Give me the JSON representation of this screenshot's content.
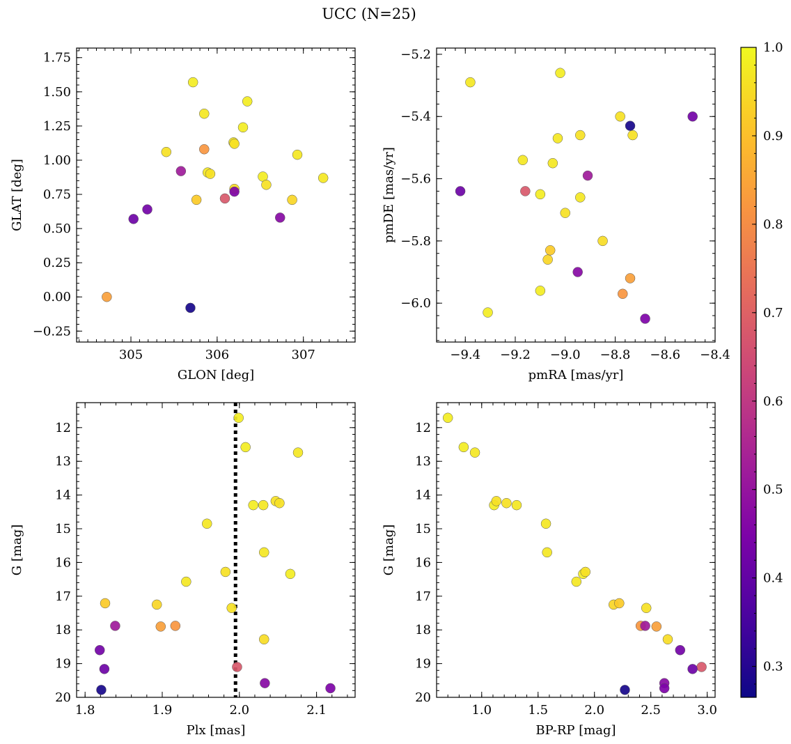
{
  "chart_data": {
    "type": "scatter",
    "title": "UCC (N=25)",
    "colorbar": {
      "range": [
        0.265,
        1.0
      ],
      "ticks": [
        0.3,
        0.4,
        0.5,
        0.6,
        0.7,
        0.8,
        0.9,
        1.0
      ],
      "tick_labels": [
        "0.3",
        "0.4",
        "0.5",
        "0.6",
        "0.7",
        "0.8",
        "0.9",
        "1.0"
      ],
      "colormap": "plasma"
    },
    "members": {
      "glon": [
        305.72,
        306.35,
        305.85,
        306.3,
        306.19,
        306.2,
        305.41,
        306.93,
        305.89,
        305.92,
        306.53,
        307.23,
        306.57,
        306.2,
        305.76,
        306.87,
        304.72,
        305.85,
        305.58,
        306.09,
        305.19,
        305.03,
        306.73,
        305.69,
        306.2
      ],
      "glat": [
        1.57,
        1.43,
        1.34,
        1.24,
        1.13,
        1.12,
        1.06,
        1.04,
        0.91,
        0.9,
        0.88,
        0.87,
        0.82,
        0.79,
        0.71,
        0.71,
        0.0,
        1.08,
        0.92,
        0.72,
        0.64,
        0.57,
        0.58,
        -0.08,
        0.77
      ],
      "pmra": [
        -9.31,
        -9.1,
        -9.38,
        -9.02,
        -9.03,
        -8.78,
        -8.94,
        -9.17,
        -9.05,
        -8.73,
        -9.1,
        -8.94,
        -9.0,
        -8.85,
        -9.06,
        -9.07,
        -8.74,
        -8.77,
        -8.91,
        -9.16,
        -8.49,
        -9.42,
        -8.95,
        -8.74,
        -8.68
      ],
      "pmde": [
        -6.03,
        -5.96,
        -5.29,
        -5.26,
        -5.47,
        -5.4,
        -5.46,
        -5.54,
        -5.55,
        -5.46,
        -5.65,
        -5.66,
        -5.71,
        -5.8,
        -5.83,
        -5.86,
        -5.92,
        -5.97,
        -5.59,
        -5.64,
        -5.4,
        -5.64,
        -5.9,
        -5.43,
        -6.05
      ],
      "plx": [
        1.999,
        2.008,
        2.076,
        2.018,
        2.031,
        2.047,
        2.052,
        1.958,
        2.032,
        1.982,
        2.066,
        1.931,
        1.99,
        2.032,
        1.826,
        1.893,
        1.898,
        1.917,
        1.839,
        1.997,
        1.819,
        1.825,
        2.033,
        1.821,
        2.118
      ],
      "G": [
        11.71,
        12.58,
        12.74,
        14.3,
        14.3,
        14.18,
        14.24,
        14.85,
        15.7,
        16.28,
        16.34,
        16.57,
        17.35,
        18.28,
        17.21,
        17.25,
        17.9,
        17.88,
        17.88,
        19.1,
        18.6,
        19.16,
        19.58,
        19.78,
        19.73
      ],
      "bprp": [
        0.7,
        0.84,
        0.94,
        1.11,
        1.31,
        1.13,
        1.22,
        1.57,
        1.58,
        1.92,
        1.9,
        1.84,
        2.46,
        2.65,
        2.22,
        2.17,
        2.55,
        2.41,
        2.45,
        2.95,
        2.76,
        2.87,
        2.62,
        2.27,
        2.62
      ],
      "prob": [
        0.98,
        0.98,
        0.97,
        0.98,
        0.97,
        0.96,
        0.96,
        0.97,
        0.97,
        0.96,
        0.98,
        0.97,
        0.96,
        0.95,
        0.92,
        0.94,
        0.84,
        0.82,
        0.52,
        0.68,
        0.43,
        0.42,
        0.47,
        0.28,
        0.45
      ]
    },
    "panels": [
      {
        "x": "glon",
        "y": "glat",
        "xlabel": "GLON [deg]",
        "ylabel": "GLAT [deg]",
        "xlim": [
          304.37,
          307.6
        ],
        "ylim": [
          -0.33,
          1.82
        ],
        "xticks": [
          305,
          306,
          307
        ],
        "xtick_labels": [
          "305",
          "306",
          "307"
        ],
        "xminor": 0.1,
        "yticks": [
          -0.25,
          0.0,
          0.25,
          0.5,
          0.75,
          1.0,
          1.25,
          1.5,
          1.75
        ],
        "ytick_labels": [
          "−0.25",
          "0.00",
          "0.25",
          "0.50",
          "0.75",
          "1.00",
          "1.25",
          "1.50",
          "1.75"
        ],
        "yminor": 0.05,
        "y_inverted": false
      },
      {
        "x": "pmra",
        "y": "pmde",
        "xlabel": "pmRA [mas/yr]",
        "ylabel": "pmDE [mas/yr]",
        "xlim": [
          -9.515,
          -8.4
        ],
        "ylim": [
          -6.125,
          -5.18
        ],
        "xticks": [
          -9.4,
          -9.2,
          -9.0,
          -8.8,
          -8.6,
          -8.4
        ],
        "xtick_labels": [
          "−9.4",
          "−9.2",
          "−9.0",
          "−8.8",
          "−8.6",
          "−8.4"
        ],
        "xminor": 0.04,
        "yticks": [
          -6.0,
          -5.8,
          -5.6,
          -5.4,
          -5.2
        ],
        "ytick_labels": [
          "−6.0",
          "−5.8",
          "−5.6",
          "−5.4",
          "−5.2"
        ],
        "yminor": 0.04,
        "y_inverted": false
      },
      {
        "x": "plx",
        "y": "G",
        "xlabel": "Plx [mas]",
        "ylabel": "G [mag]",
        "xlim": [
          1.789,
          2.15
        ],
        "ylim": [
          11.26,
          20.0
        ],
        "xticks": [
          1.8,
          1.9,
          2.0,
          2.1
        ],
        "xtick_labels": [
          "1.8",
          "1.9",
          "2.0",
          "2.1"
        ],
        "xminor": 0.02,
        "yticks": [
          12,
          13,
          14,
          15,
          16,
          17,
          18,
          19,
          20
        ],
        "ytick_labels": [
          "12",
          "13",
          "14",
          "15",
          "16",
          "17",
          "18",
          "19",
          "20"
        ],
        "yminor": 0.2,
        "y_inverted": true,
        "vline": 1.995
      },
      {
        "x": "bprp",
        "y": "G",
        "xlabel": "BP-RP [mag]",
        "ylabel": "G [mag]",
        "xlim": [
          0.6,
          3.07
        ],
        "ylim": [
          11.26,
          20.0
        ],
        "xticks": [
          1.0,
          1.5,
          2.0,
          2.5,
          3.0
        ],
        "xtick_labels": [
          "1.0",
          "1.5",
          "2.0",
          "2.5",
          "3.0"
        ],
        "xminor": 0.1,
        "yticks": [
          12,
          13,
          14,
          15,
          16,
          17,
          18,
          19,
          20
        ],
        "ytick_labels": [
          "12",
          "13",
          "14",
          "15",
          "16",
          "17",
          "18",
          "19",
          "20"
        ],
        "yminor": 0.2,
        "y_inverted": true
      }
    ]
  }
}
